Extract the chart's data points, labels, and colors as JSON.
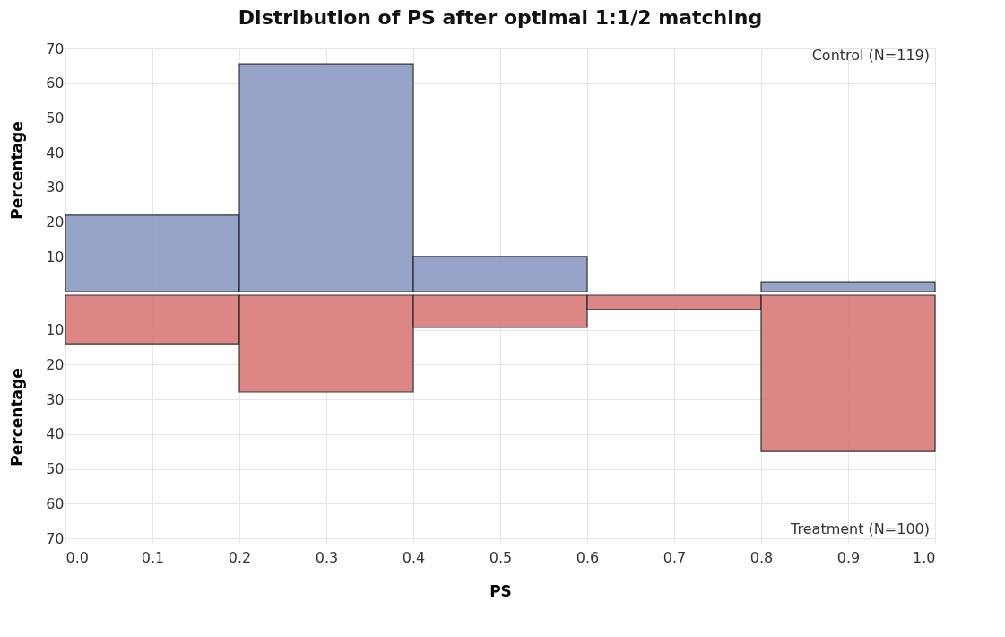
{
  "chart_data": [
    {
      "type": "histogram",
      "title": "Distribution of PS after optimal 1:1/2 matching",
      "ylabel": "Percentage",
      "bins": [
        0.0,
        0.2,
        0.4,
        0.6,
        0.8,
        1.0
      ],
      "series": [
        {
          "color": "#8c9bc4",
          "values": [
            22,
            65.6,
            10.1,
            null,
            2.8
          ]
        }
      ],
      "xlim": [
        0,
        1
      ],
      "xticks": [
        0,
        0.1,
        0.2,
        0.3,
        0.4,
        0.5,
        0.6,
        0.7,
        0.8,
        0.9,
        1
      ],
      "ylim": [
        0,
        70
      ],
      "yticks": [
        10,
        20,
        30,
        40,
        50,
        60,
        70
      ],
      "grid": true,
      "tick_labels": "y",
      "annotations": [
        "Control (N=119)"
      ]
    },
    {
      "type": "histogram",
      "xlabel": "PS",
      "ylabel": "Percentage",
      "bins": [
        0.0,
        0.2,
        0.4,
        0.6,
        0.8,
        1.0
      ],
      "series": [
        {
          "color": "#d97a7a",
          "values": [
            14,
            27.9,
            9.3,
            4.1,
            45
          ]
        }
      ],
      "xlim": [
        0,
        1
      ],
      "xticks": [
        {
          "value": 0,
          "label": "0.0"
        },
        0.1,
        0.2,
        0.3,
        0.4,
        0.5,
        0.6,
        0.7,
        0.8,
        0.9,
        {
          "value": 1,
          "label": "1.0"
        }
      ],
      "ylim": [
        70,
        0
      ],
      "yticks": [
        10,
        20,
        30,
        40,
        50,
        60,
        70
      ],
      "grid": true,
      "annotations": [
        "Treatment (N=100)"
      ]
    }
  ]
}
